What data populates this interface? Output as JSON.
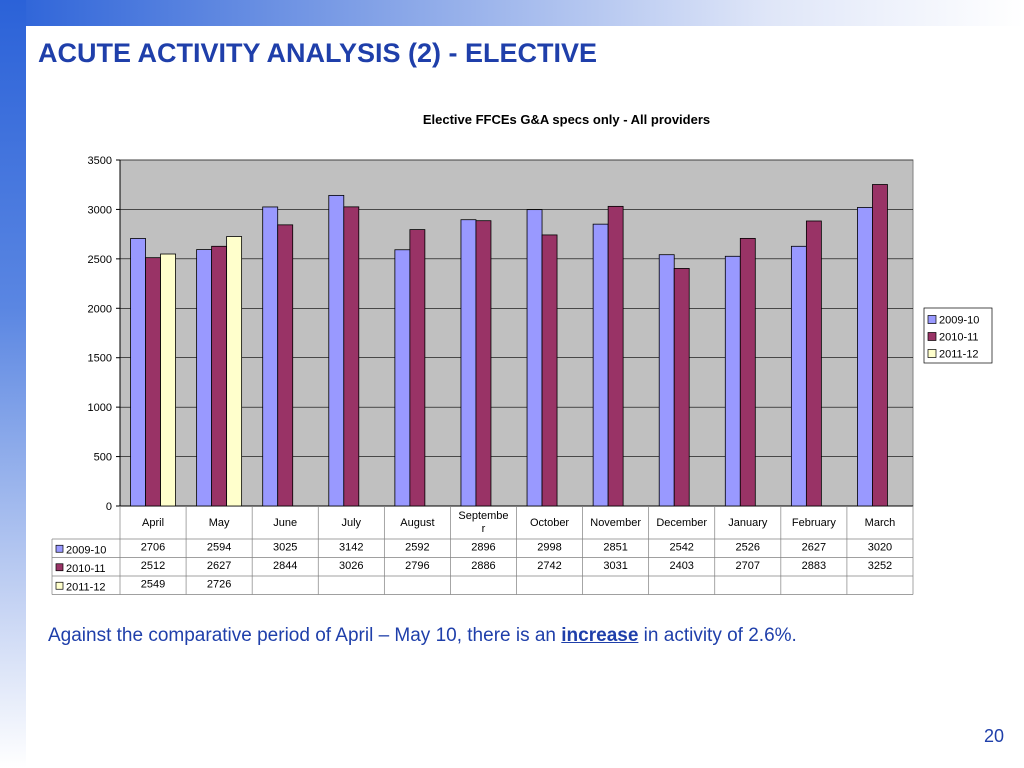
{
  "slide": {
    "title": "ACUTE ACTIVITY ANALYSIS (2) - ELECTIVE",
    "note_before": "Against the comparative period of April – May 10, there is an ",
    "note_emphasis": "increase",
    "note_after": " in activity of 2.6%.",
    "page_number": "20"
  },
  "colors": {
    "title_text": "#1f3faa",
    "plot_background": "#c0c0c0",
    "series": [
      "#9999ff",
      "#993366",
      "#ffffcc"
    ]
  },
  "chart_data": {
    "type": "bar",
    "title": "Elective FFCEs G&A specs only - All providers",
    "xlabel": "",
    "ylabel": "",
    "categories": [
      "April",
      "May",
      "June",
      "July",
      "August",
      "September",
      "October",
      "November",
      "December",
      "January",
      "February",
      "March"
    ],
    "series": [
      {
        "name": "2009-10",
        "values": [
          2706,
          2594,
          3025,
          3142,
          2592,
          2896,
          2998,
          2851,
          2542,
          2526,
          2627,
          3020
        ]
      },
      {
        "name": "2010-11",
        "values": [
          2512,
          2627,
          2844,
          3026,
          2796,
          2886,
          2742,
          3031,
          2403,
          2707,
          2883,
          3252
        ]
      },
      {
        "name": "2011-12",
        "values": [
          2549,
          2726,
          null,
          null,
          null,
          null,
          null,
          null,
          null,
          null,
          null,
          null
        ]
      }
    ],
    "ylim": [
      0,
      3500
    ],
    "yticks": [
      0,
      500,
      1000,
      1500,
      2000,
      2500,
      3000,
      3500
    ],
    "grid": true,
    "legend": "right",
    "data_table": true
  }
}
